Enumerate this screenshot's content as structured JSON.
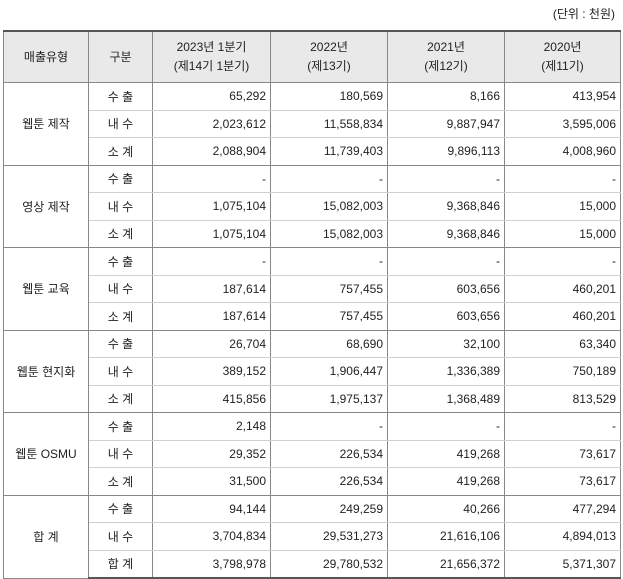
{
  "unit_note": "(단위 : 천원)",
  "table": {
    "header": [
      [
        "매출유형"
      ],
      [
        "구분"
      ],
      [
        "2023년 1분기",
        "(제14기 1분기)"
      ],
      [
        "2022년",
        "(제13기)"
      ],
      [
        "2021년",
        "(제12기)"
      ],
      [
        "2020년",
        "(제11기)"
      ]
    ],
    "groups": [
      {
        "type": "웹툰 제작",
        "rows": [
          {
            "label": "수 출",
            "values": [
              "65,292",
              "180,569",
              "8,166",
              "413,954"
            ]
          },
          {
            "label": "내 수",
            "values": [
              "2,023,612",
              "11,558,834",
              "9,887,947",
              "3,595,006"
            ]
          },
          {
            "label": "소 계",
            "values": [
              "2,088,904",
              "11,739,403",
              "9,896,113",
              "4,008,960"
            ]
          }
        ]
      },
      {
        "type": "영상 제작",
        "rows": [
          {
            "label": "수 출",
            "values": [
              "-",
              "-",
              "-",
              "-"
            ]
          },
          {
            "label": "내 수",
            "values": [
              "1,075,104",
              "15,082,003",
              "9,368,846",
              "15,000"
            ]
          },
          {
            "label": "소 계",
            "values": [
              "1,075,104",
              "15,082,003",
              "9,368,846",
              "15,000"
            ]
          }
        ]
      },
      {
        "type": "웹툰 교육",
        "rows": [
          {
            "label": "수 출",
            "values": [
              "-",
              "-",
              "-",
              "-"
            ]
          },
          {
            "label": "내 수",
            "values": [
              "187,614",
              "757,455",
              "603,656",
              "460,201"
            ]
          },
          {
            "label": "소 계",
            "values": [
              "187,614",
              "757,455",
              "603,656",
              "460,201"
            ]
          }
        ]
      },
      {
        "type": "웹툰 현지화",
        "rows": [
          {
            "label": "수 출",
            "values": [
              "26,704",
              "68,690",
              "32,100",
              "63,340"
            ]
          },
          {
            "label": "내 수",
            "values": [
              "389,152",
              "1,906,447",
              "1,336,389",
              "750,189"
            ]
          },
          {
            "label": "소 계",
            "values": [
              "415,856",
              "1,975,137",
              "1,368,489",
              "813,529"
            ]
          }
        ]
      },
      {
        "type": "웹툰 OSMU",
        "rows": [
          {
            "label": "수 출",
            "values": [
              "2,148",
              "-",
              "-",
              "-"
            ]
          },
          {
            "label": "내 수",
            "values": [
              "29,352",
              "226,534",
              "419,268",
              "73,617"
            ]
          },
          {
            "label": "소 계",
            "values": [
              "31,500",
              "226,534",
              "419,268",
              "73,617"
            ]
          }
        ]
      },
      {
        "type": "합 계",
        "rows": [
          {
            "label": "수 출",
            "values": [
              "94,144",
              "249,259",
              "40,266",
              "477,294"
            ]
          },
          {
            "label": "내 수",
            "values": [
              "3,704,834",
              "29,531,273",
              "21,616,106",
              "4,894,013"
            ]
          },
          {
            "label": "합 계",
            "values": [
              "3,798,978",
              "29,780,532",
              "21,656,372",
              "5,371,307"
            ]
          }
        ]
      }
    ]
  }
}
